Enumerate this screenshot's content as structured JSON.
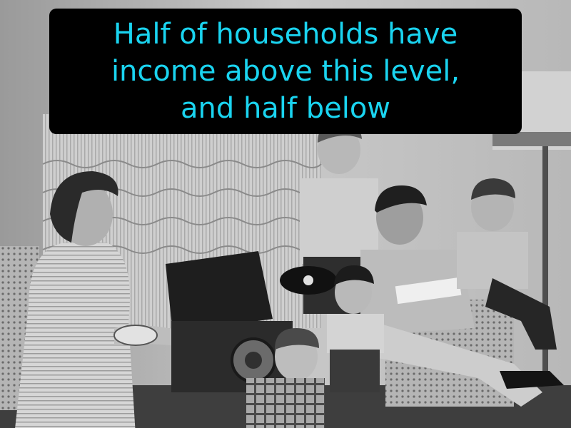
{
  "caption": {
    "lines": [
      "Half of households have",
      "income above this level,",
      "and half below"
    ],
    "text_color": "#1ad4f0",
    "background_color": "#000000"
  },
  "photo": {
    "style": "black-and-white"
  }
}
